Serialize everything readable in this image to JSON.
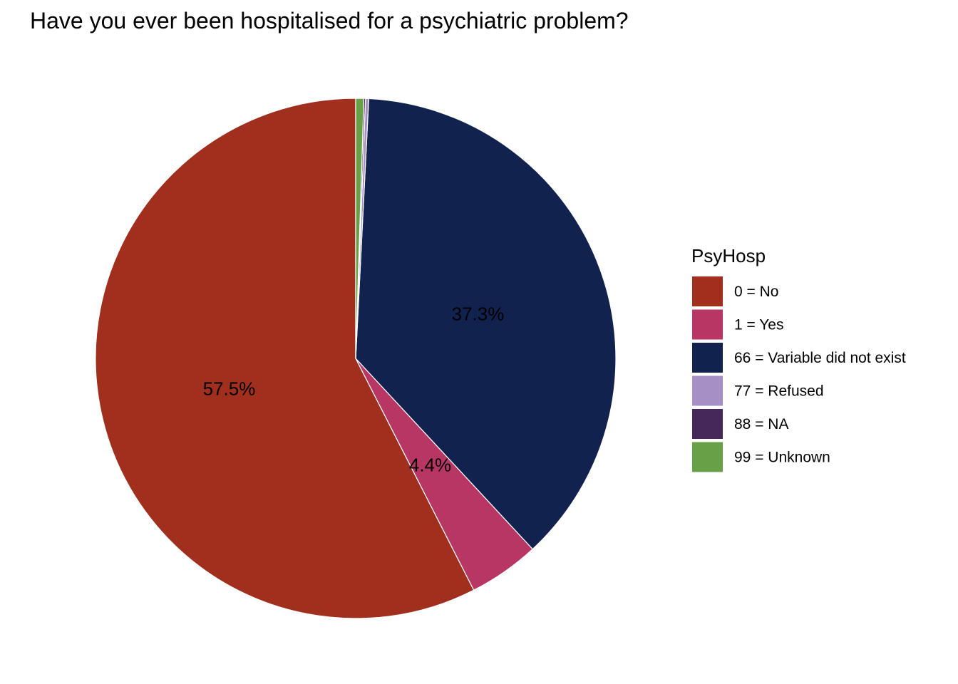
{
  "chart_data": {
    "type": "pie",
    "title": "Have you ever been hospitalised for a psychiatric problem?",
    "legend": {
      "title": "PsyHosp",
      "position": "right"
    },
    "slices": [
      {
        "label": "0 = No",
        "value": 57.5,
        "color": "#A0301D",
        "data_label": "57.5%"
      },
      {
        "label": "1 = Yes",
        "value": 4.4,
        "color": "#B73663",
        "data_label": "4.4%"
      },
      {
        "label": "66 = Variable did not exist",
        "value": 37.3,
        "color": "#11224E",
        "data_label": "37.3%"
      },
      {
        "label": "77 = Refused",
        "value": 0.2,
        "color": "#A58FC5",
        "data_label": ""
      },
      {
        "label": "88 = NA",
        "value": 0.1,
        "color": "#46285B",
        "data_label": ""
      },
      {
        "label": "99 = Unknown",
        "value": 0.5,
        "color": "#68A047",
        "data_label": ""
      }
    ]
  }
}
